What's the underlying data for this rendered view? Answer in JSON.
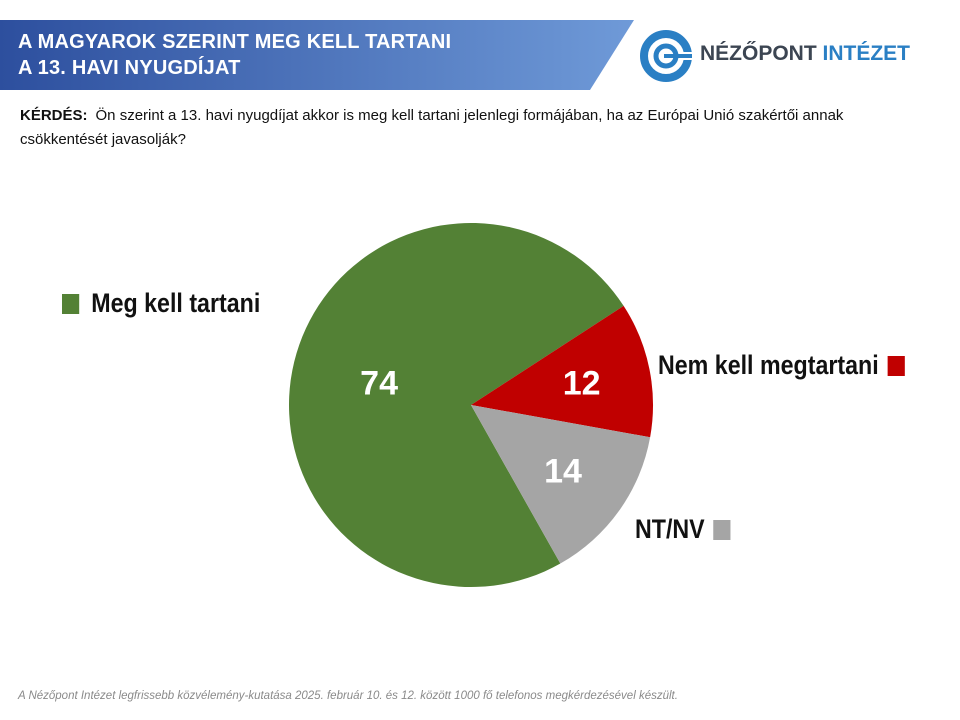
{
  "header": {
    "title_line1": "A MAGYAROK SZERINT MEG KELL TARTANI",
    "title_line2": "A 13. HAVI NYUGDÍJAT",
    "banner_colors": [
      "#2d4f9e",
      "#6f9ad8"
    ]
  },
  "logo": {
    "icon": "nezopont-logo-icon",
    "text_part1": "NÉZŐPONT",
    "text_part2": "INTÉZET",
    "colors": {
      "ring": "#2a7fc4",
      "text_dark": "#3c4552",
      "text_accent": "#2a7fc4"
    }
  },
  "question": {
    "label": "KÉRDÉS:",
    "text": "Ön szerint a 13. havi nyugdíjat akkor is meg kell tartani jelenlegi formájában, ha az Európai Unió szakértői annak csökkentését javasolják?"
  },
  "chart_data": {
    "type": "pie",
    "slices": [
      {
        "label": "Meg kell tartani",
        "value": 74,
        "color": "#538135"
      },
      {
        "label": "Nem kell megtartani",
        "value": 12,
        "color": "#c00000"
      },
      {
        "label": "NT/NV",
        "value": 14,
        "color": "#a5a5a5"
      }
    ],
    "data_labels": [
      "74",
      "12",
      "14"
    ]
  },
  "footnote": "A Nézőpont Intézet legfrissebb közvélemény-kutatása 2025. február 10. és 12. között 1000 fő telefonos megkérdezésével készült."
}
